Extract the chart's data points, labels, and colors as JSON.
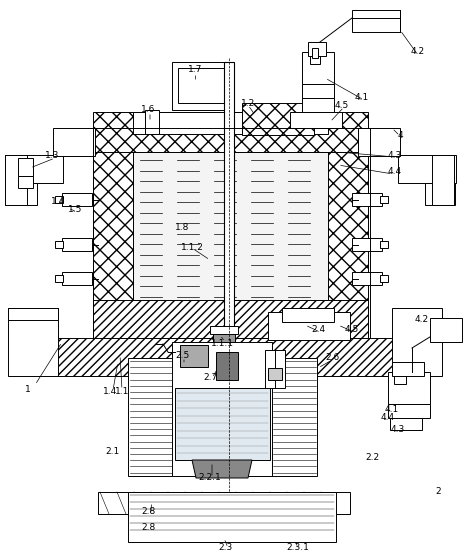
{
  "bg_color": "#ffffff",
  "line_color": "#000000",
  "figsize": [
    4.66,
    5.58
  ],
  "dpi": 100,
  "labels": [
    [
      "1",
      28,
      390
    ],
    [
      "1.1",
      122,
      392
    ],
    [
      "1.1.1",
      222,
      343
    ],
    [
      "1.1.2",
      192,
      248
    ],
    [
      "1.2",
      248,
      103
    ],
    [
      "1.3",
      52,
      155
    ],
    [
      "1.4",
      58,
      202
    ],
    [
      "1.4",
      110,
      392
    ],
    [
      "1.5",
      75,
      210
    ],
    [
      "1.6",
      148,
      110
    ],
    [
      "1.7",
      195,
      70
    ],
    [
      "1.8",
      182,
      228
    ],
    [
      "2",
      438,
      492
    ],
    [
      "2.1",
      112,
      452
    ],
    [
      "2.2",
      372,
      458
    ],
    [
      "2.2.1",
      210,
      478
    ],
    [
      "2.3",
      225,
      548
    ],
    [
      "2.3.1",
      298,
      548
    ],
    [
      "2.4",
      318,
      330
    ],
    [
      "2.5",
      182,
      355
    ],
    [
      "2.6",
      332,
      358
    ],
    [
      "2.7",
      210,
      378
    ],
    [
      "2.8",
      148,
      512
    ],
    [
      "2.8",
      148,
      527
    ],
    [
      "4",
      400,
      135
    ],
    [
      "4.1",
      362,
      98
    ],
    [
      "4.1",
      392,
      410
    ],
    [
      "4.2",
      418,
      52
    ],
    [
      "4.2",
      422,
      320
    ],
    [
      "4.3",
      395,
      155
    ],
    [
      "4.3",
      398,
      430
    ],
    [
      "4.4",
      395,
      172
    ],
    [
      "4.4",
      388,
      418
    ],
    [
      "4.5",
      342,
      105
    ],
    [
      "4.5",
      352,
      330
    ]
  ]
}
